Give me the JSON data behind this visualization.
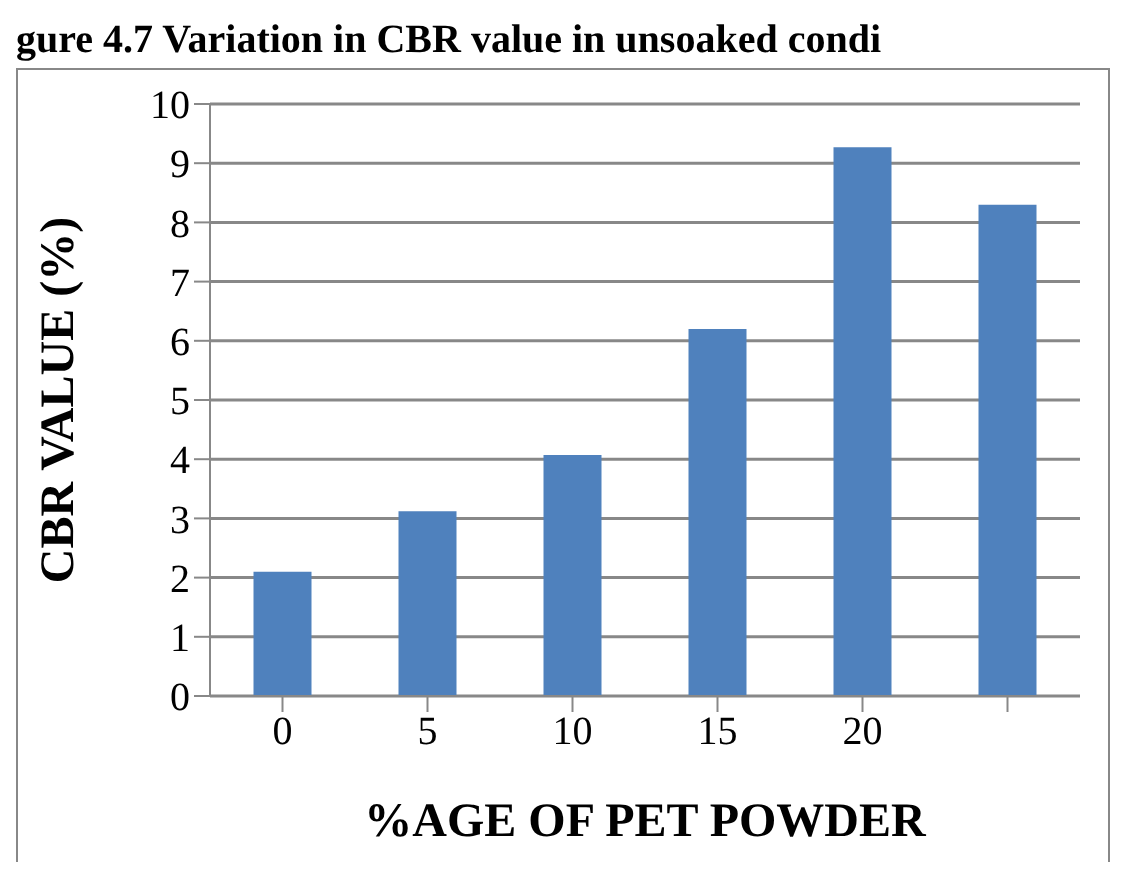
{
  "chart_data": {
    "type": "bar",
    "title": "gure 4.7  Variation in CBR value in unsoaked condi",
    "xlabel": "%AGE OF PET POWDER",
    "ylabel": "CBR VALUE (%)",
    "categories": [
      "0",
      "5",
      "10",
      "15",
      "20",
      null
    ],
    "values": [
      2.1,
      3.12,
      4.07,
      6.2,
      9.27,
      8.3
    ],
    "color": "#4f81bd",
    "ylim": [
      0,
      10
    ],
    "yticks": [
      0,
      1,
      2,
      3,
      4,
      5,
      6,
      7,
      8,
      9,
      10
    ],
    "grid": "y"
  }
}
